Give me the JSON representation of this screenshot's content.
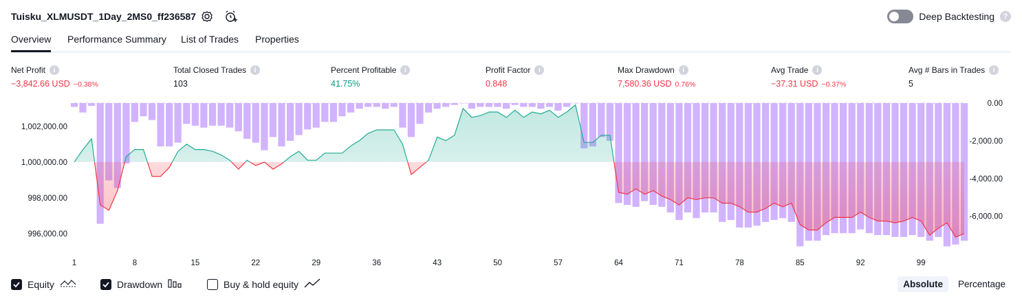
{
  "header": {
    "strategy_name": "Tuisku_XLMUSDT_1Day_2MS0_ff236587",
    "icons": [
      "settings-icon",
      "alert-add-icon"
    ],
    "deep_backtesting_label": "Deep Backtesting",
    "deep_backtesting_enabled": false
  },
  "tabs": [
    {
      "label": "Overview",
      "active": true
    },
    {
      "label": "Performance Summary",
      "active": false
    },
    {
      "label": "List of Trades",
      "active": false
    },
    {
      "label": "Properties",
      "active": false
    }
  ],
  "metrics": [
    {
      "label": "Net Profit",
      "value": "−3,842.66 USD",
      "pct": "−0.38%",
      "tone": "neg"
    },
    {
      "label": "Total Closed Trades",
      "value": "103",
      "pct": "",
      "tone": "neutral"
    },
    {
      "label": "Percent Profitable",
      "value": "41.75%",
      "pct": "",
      "tone": "pos"
    },
    {
      "label": "Profit Factor",
      "value": "0.848",
      "pct": "",
      "tone": "neg"
    },
    {
      "label": "Max Drawdown",
      "value": "7,580.36 USD",
      "pct": "0.76%",
      "tone": "neg"
    },
    {
      "label": "Avg Trade",
      "value": "−37.31 USD",
      "pct": "−0.37%",
      "tone": "neg"
    },
    {
      "label": "Avg # Bars in Trades",
      "value": "5",
      "pct": "",
      "tone": "neutral"
    }
  ],
  "chart_data": {
    "type": "line",
    "title": "",
    "x_ticks": [
      "1",
      "8",
      "15",
      "22",
      "29",
      "36",
      "43",
      "50",
      "57",
      "64",
      "71",
      "78",
      "85",
      "92",
      "99"
    ],
    "xlim": [
      1,
      104
    ],
    "left_axis": {
      "ticks": [
        "1,002,000.00",
        "1,000,000.00",
        "998,000.00",
        "996,000.00"
      ],
      "ylim": [
        995300,
        1003300
      ],
      "baseline": 1000000
    },
    "right_axis": {
      "ticks": [
        "0.00",
        "-2,000.00",
        "-4,000.00",
        "-6,000.00"
      ],
      "ylim": [
        -7580,
        0
      ]
    },
    "series": [
      {
        "name": "Equity",
        "color_up": "#22ab94",
        "color_down": "#f23645",
        "values": [
          1000000,
          1000700,
          1001300,
          997600,
          997300,
          998400,
          1000300,
          1000700,
          1000700,
          999200,
          999200,
          999700,
          1000600,
          1001000,
          1000700,
          1000700,
          1000600,
          1000400,
          1000100,
          999600,
          1000100,
          999800,
          1000000,
          999600,
          999900,
          1000300,
          1000600,
          1000100,
          1000100,
          1000500,
          1000500,
          1000500,
          1000900,
          1001200,
          1001600,
          1001800,
          1001800,
          1001800,
          1001000,
          999300,
          999700,
          1000100,
          1001400,
          1001200,
          1001500,
          1003000,
          1002500,
          1002600,
          1002800,
          1002800,
          1002500,
          1002900,
          1002500,
          1002800,
          1002700,
          1002900,
          1002500,
          1002800,
          1003200,
          1001100,
          1001100,
          1001500,
          1001500,
          998300,
          998200,
          998500,
          998200,
          998400,
          998100,
          997900,
          997600,
          998000,
          997900,
          998000,
          998000,
          997700,
          997700,
          997500,
          997200,
          997200,
          997400,
          997700,
          997500,
          997700,
          996500,
          996200,
          996200,
          996600,
          996900,
          996900,
          996900,
          997200,
          996900,
          996700,
          996700,
          996600,
          996700,
          996900,
          996700,
          995900,
          996300,
          996600,
          995800,
          996000
        ]
      },
      {
        "name": "Drawdown",
        "color": "#d1b3ff",
        "values": [
          -200,
          -500,
          -150,
          -6400,
          -4100,
          -4500,
          -3200,
          -1000,
          -700,
          -900,
          -2300,
          -2300,
          -2100,
          -1100,
          -1200,
          -1300,
          -1200,
          -1200,
          -1300,
          -1500,
          -1900,
          -2100,
          -2500,
          -1800,
          -2300,
          -2000,
          -1700,
          -1400,
          -1300,
          -1000,
          -1000,
          -700,
          -500,
          -300,
          -200,
          -200,
          -300,
          -200,
          -1300,
          -1800,
          -1100,
          -500,
          -300,
          -200,
          -100,
          0,
          -300,
          -200,
          -200,
          -200,
          -300,
          -100,
          -200,
          -200,
          -300,
          -200,
          -400,
          -200,
          0,
          -2400,
          -2300,
          -1800,
          -2000,
          -5300,
          -5400,
          -5500,
          -5200,
          -5400,
          -5500,
          -5800,
          -6200,
          -5800,
          -6100,
          -5800,
          -5800,
          -6300,
          -6200,
          -6600,
          -6600,
          -6500,
          -6300,
          -6200,
          -6100,
          -6300,
          -7600,
          -7300,
          -7300,
          -7000,
          -6900,
          -6900,
          -6900,
          -6700,
          -6900,
          -7000,
          -7000,
          -7100,
          -7100,
          -7000,
          -7100,
          -7300,
          -7100,
          -7600,
          -7500,
          -7300
        ]
      }
    ]
  },
  "footer": {
    "legend": [
      {
        "label": "Equity",
        "checked": true,
        "icon": "equity-line-icon"
      },
      {
        "label": "Drawdown",
        "checked": true,
        "icon": "drawdown-bars-icon"
      },
      {
        "label": "Buy & hold equity",
        "checked": false,
        "icon": "buy-hold-line-icon"
      }
    ],
    "modes": [
      {
        "label": "Absolute",
        "active": true
      },
      {
        "label": "Percentage",
        "active": false
      }
    ]
  }
}
